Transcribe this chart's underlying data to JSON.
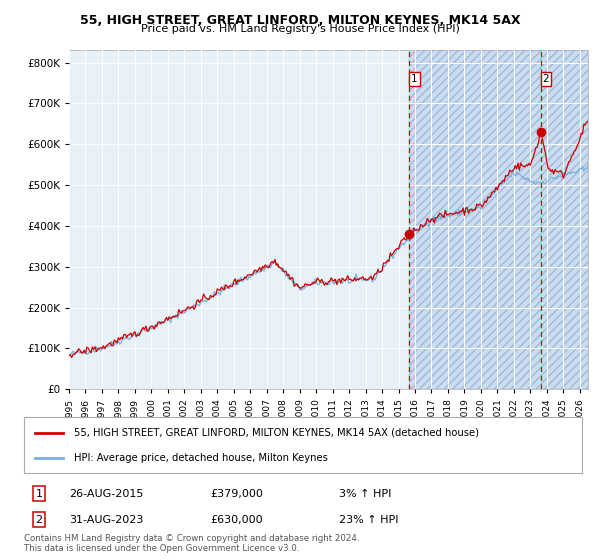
{
  "title1": "55, HIGH STREET, GREAT LINFORD, MILTON KEYNES, MK14 5AX",
  "title2": "Price paid vs. HM Land Registry's House Price Index (HPI)",
  "legend_line1": "55, HIGH STREET, GREAT LINFORD, MILTON KEYNES, MK14 5AX (detached house)",
  "legend_line2": "HPI: Average price, detached house, Milton Keynes",
  "sale1_label": "1",
  "sale1_date": "26-AUG-2015",
  "sale1_price": "£379,000",
  "sale1_hpi": "3% ↑ HPI",
  "sale1_year": 2015.65,
  "sale1_value": 379000,
  "sale2_label": "2",
  "sale2_date": "31-AUG-2023",
  "sale2_price": "£630,000",
  "sale2_hpi": "23% ↑ HPI",
  "sale2_year": 2023.65,
  "sale2_value": 630000,
  "footnote1": "Contains HM Land Registry data © Crown copyright and database right 2024.",
  "footnote2": "This data is licensed under the Open Government Licence v3.0.",
  "ylim": [
    0,
    830000
  ],
  "xlim_start": 1995.0,
  "xlim_end": 2026.5,
  "hatch_start": 2015.65,
  "bg_color": "#e8f0f8",
  "hatch_color": "#ccdcf0"
}
